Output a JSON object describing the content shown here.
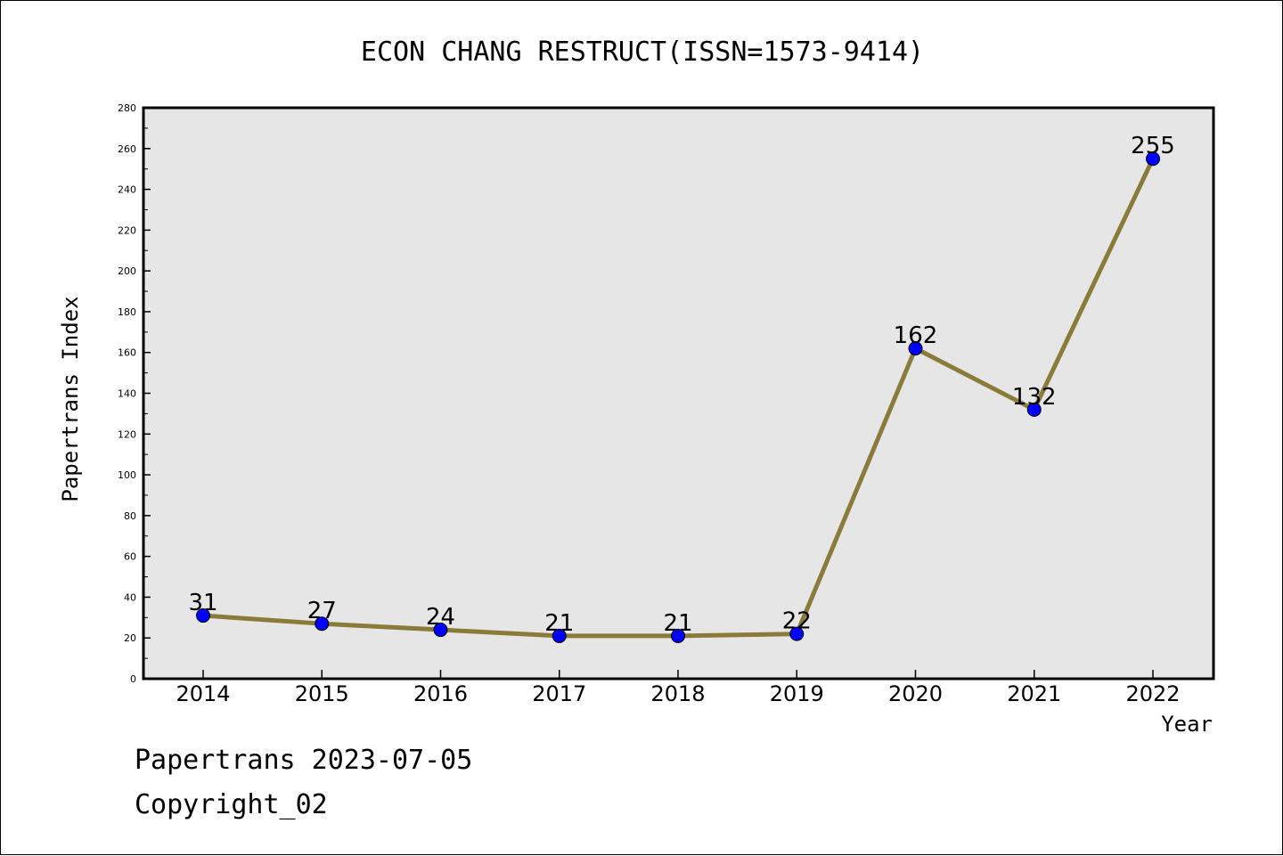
{
  "chart_data": {
    "type": "line",
    "title": "ECON CHANG RESTRUCT(ISSN=1573-9414)",
    "xlabel": "Year",
    "ylabel": "Papertrans Index",
    "x": [
      "2014",
      "2015",
      "2016",
      "2017",
      "2018",
      "2019",
      "2020",
      "2021",
      "2022"
    ],
    "series": [
      {
        "values": [
          31,
          27,
          24,
          21,
          21,
          22,
          162,
          132,
          255
        ]
      }
    ],
    "ylim": [
      0,
      280
    ],
    "y_ticks": [
      0,
      20,
      40,
      60,
      80,
      100,
      120,
      140,
      160,
      180,
      200,
      220,
      240,
      260,
      280
    ],
    "grid": false,
    "legend": "none",
    "colors": {
      "line": "#8B7B3A",
      "marker": "#0000FF",
      "plot_bg": "#E6E6E6"
    }
  },
  "footer": {
    "line1": "Papertrans 2023-07-05",
    "line2": "Copyright_02"
  }
}
